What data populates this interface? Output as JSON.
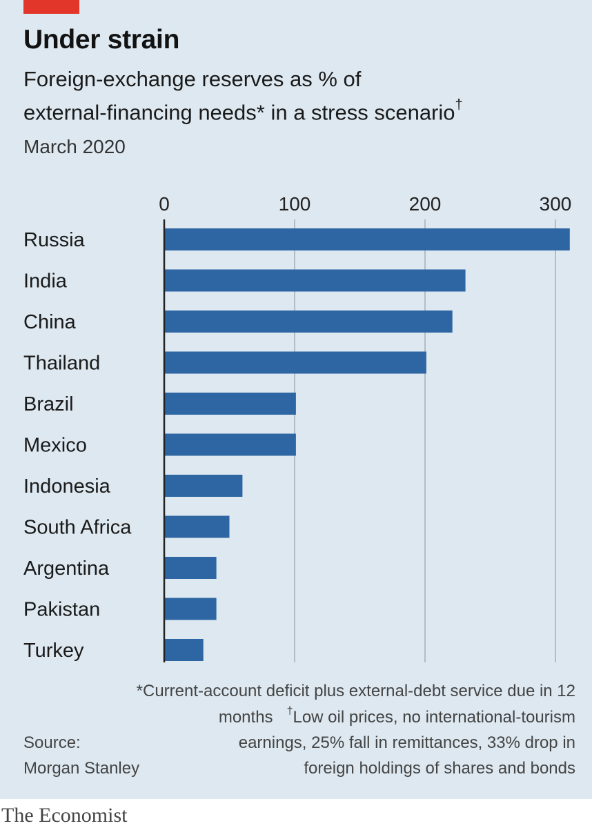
{
  "title": "Under strain",
  "subtitle_line1": "Foreign-exchange reserves as % of",
  "subtitle_line2": "external-financing needs* in a stress scenario",
  "subtitle_mark": "†",
  "date": "March 2020",
  "footnotes": {
    "line1": "*Current-account deficit plus external-debt service due in 12",
    "line2_a": "months",
    "line2_mark": "†",
    "line2_b": "Low oil prices, no international-tourism",
    "line3": "earnings, 25% fall in remittances, 33% drop in",
    "line4": "foreign holdings of shares and bonds"
  },
  "source": {
    "label": "Source:",
    "name": "Morgan Stanley"
  },
  "publisher": "The Economist",
  "colors": {
    "bar": "#2e65a3",
    "background": "#dde8f0",
    "accent": "#e3362b",
    "grid": "#b3bdc6",
    "axis": "#222222"
  },
  "chart_data": {
    "type": "bar",
    "orientation": "horizontal",
    "title": "Under strain",
    "subtitle": "Foreign-exchange reserves as % of external-financing needs* in a stress scenario†",
    "xlabel": "",
    "ylabel": "",
    "xlim": [
      0,
      300
    ],
    "x_ticks": [
      0,
      100,
      200,
      300
    ],
    "x_tick_labels": [
      "0",
      "100",
      "200",
      "300"
    ],
    "tick_position": "top",
    "grid": true,
    "categories": [
      "Russia",
      "India",
      "China",
      "Thailand",
      "Brazil",
      "Mexico",
      "Indonesia",
      "South Africa",
      "Argentina",
      "Pakistan",
      "Turkey"
    ],
    "values": [
      311,
      231,
      221,
      201,
      101,
      101,
      60,
      50,
      40,
      40,
      30
    ]
  }
}
